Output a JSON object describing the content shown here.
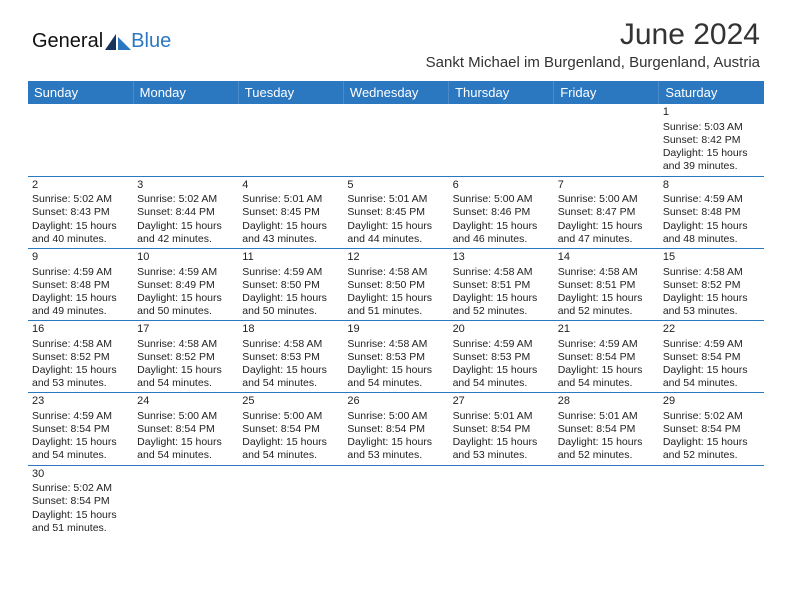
{
  "brand": {
    "word1": "General",
    "word2": "Blue"
  },
  "title": "June 2024",
  "location": "Sankt Michael im Burgenland, Burgenland, Austria",
  "colors": {
    "header_bg": "#2b77c0",
    "header_fg": "#ffffff",
    "rule": "#2b77c0",
    "text": "#222222",
    "page_bg": "#ffffff"
  },
  "day_headers": [
    "Sunday",
    "Monday",
    "Tuesday",
    "Wednesday",
    "Thursday",
    "Friday",
    "Saturday"
  ],
  "weeks": [
    [
      null,
      null,
      null,
      null,
      null,
      null,
      {
        "n": "1",
        "sr": "Sunrise: 5:03 AM",
        "ss": "Sunset: 8:42 PM",
        "d1": "Daylight: 15 hours",
        "d2": "and 39 minutes."
      }
    ],
    [
      {
        "n": "2",
        "sr": "Sunrise: 5:02 AM",
        "ss": "Sunset: 8:43 PM",
        "d1": "Daylight: 15 hours",
        "d2": "and 40 minutes."
      },
      {
        "n": "3",
        "sr": "Sunrise: 5:02 AM",
        "ss": "Sunset: 8:44 PM",
        "d1": "Daylight: 15 hours",
        "d2": "and 42 minutes."
      },
      {
        "n": "4",
        "sr": "Sunrise: 5:01 AM",
        "ss": "Sunset: 8:45 PM",
        "d1": "Daylight: 15 hours",
        "d2": "and 43 minutes."
      },
      {
        "n": "5",
        "sr": "Sunrise: 5:01 AM",
        "ss": "Sunset: 8:45 PM",
        "d1": "Daylight: 15 hours",
        "d2": "and 44 minutes."
      },
      {
        "n": "6",
        "sr": "Sunrise: 5:00 AM",
        "ss": "Sunset: 8:46 PM",
        "d1": "Daylight: 15 hours",
        "d2": "and 46 minutes."
      },
      {
        "n": "7",
        "sr": "Sunrise: 5:00 AM",
        "ss": "Sunset: 8:47 PM",
        "d1": "Daylight: 15 hours",
        "d2": "and 47 minutes."
      },
      {
        "n": "8",
        "sr": "Sunrise: 4:59 AM",
        "ss": "Sunset: 8:48 PM",
        "d1": "Daylight: 15 hours",
        "d2": "and 48 minutes."
      }
    ],
    [
      {
        "n": "9",
        "sr": "Sunrise: 4:59 AM",
        "ss": "Sunset: 8:48 PM",
        "d1": "Daylight: 15 hours",
        "d2": "and 49 minutes."
      },
      {
        "n": "10",
        "sr": "Sunrise: 4:59 AM",
        "ss": "Sunset: 8:49 PM",
        "d1": "Daylight: 15 hours",
        "d2": "and 50 minutes."
      },
      {
        "n": "11",
        "sr": "Sunrise: 4:59 AM",
        "ss": "Sunset: 8:50 PM",
        "d1": "Daylight: 15 hours",
        "d2": "and 50 minutes."
      },
      {
        "n": "12",
        "sr": "Sunrise: 4:58 AM",
        "ss": "Sunset: 8:50 PM",
        "d1": "Daylight: 15 hours",
        "d2": "and 51 minutes."
      },
      {
        "n": "13",
        "sr": "Sunrise: 4:58 AM",
        "ss": "Sunset: 8:51 PM",
        "d1": "Daylight: 15 hours",
        "d2": "and 52 minutes."
      },
      {
        "n": "14",
        "sr": "Sunrise: 4:58 AM",
        "ss": "Sunset: 8:51 PM",
        "d1": "Daylight: 15 hours",
        "d2": "and 52 minutes."
      },
      {
        "n": "15",
        "sr": "Sunrise: 4:58 AM",
        "ss": "Sunset: 8:52 PM",
        "d1": "Daylight: 15 hours",
        "d2": "and 53 minutes."
      }
    ],
    [
      {
        "n": "16",
        "sr": "Sunrise: 4:58 AM",
        "ss": "Sunset: 8:52 PM",
        "d1": "Daylight: 15 hours",
        "d2": "and 53 minutes."
      },
      {
        "n": "17",
        "sr": "Sunrise: 4:58 AM",
        "ss": "Sunset: 8:52 PM",
        "d1": "Daylight: 15 hours",
        "d2": "and 54 minutes."
      },
      {
        "n": "18",
        "sr": "Sunrise: 4:58 AM",
        "ss": "Sunset: 8:53 PM",
        "d1": "Daylight: 15 hours",
        "d2": "and 54 minutes."
      },
      {
        "n": "19",
        "sr": "Sunrise: 4:58 AM",
        "ss": "Sunset: 8:53 PM",
        "d1": "Daylight: 15 hours",
        "d2": "and 54 minutes."
      },
      {
        "n": "20",
        "sr": "Sunrise: 4:59 AM",
        "ss": "Sunset: 8:53 PM",
        "d1": "Daylight: 15 hours",
        "d2": "and 54 minutes."
      },
      {
        "n": "21",
        "sr": "Sunrise: 4:59 AM",
        "ss": "Sunset: 8:54 PM",
        "d1": "Daylight: 15 hours",
        "d2": "and 54 minutes."
      },
      {
        "n": "22",
        "sr": "Sunrise: 4:59 AM",
        "ss": "Sunset: 8:54 PM",
        "d1": "Daylight: 15 hours",
        "d2": "and 54 minutes."
      }
    ],
    [
      {
        "n": "23",
        "sr": "Sunrise: 4:59 AM",
        "ss": "Sunset: 8:54 PM",
        "d1": "Daylight: 15 hours",
        "d2": "and 54 minutes."
      },
      {
        "n": "24",
        "sr": "Sunrise: 5:00 AM",
        "ss": "Sunset: 8:54 PM",
        "d1": "Daylight: 15 hours",
        "d2": "and 54 minutes."
      },
      {
        "n": "25",
        "sr": "Sunrise: 5:00 AM",
        "ss": "Sunset: 8:54 PM",
        "d1": "Daylight: 15 hours",
        "d2": "and 54 minutes."
      },
      {
        "n": "26",
        "sr": "Sunrise: 5:00 AM",
        "ss": "Sunset: 8:54 PM",
        "d1": "Daylight: 15 hours",
        "d2": "and 53 minutes."
      },
      {
        "n": "27",
        "sr": "Sunrise: 5:01 AM",
        "ss": "Sunset: 8:54 PM",
        "d1": "Daylight: 15 hours",
        "d2": "and 53 minutes."
      },
      {
        "n": "28",
        "sr": "Sunrise: 5:01 AM",
        "ss": "Sunset: 8:54 PM",
        "d1": "Daylight: 15 hours",
        "d2": "and 52 minutes."
      },
      {
        "n": "29",
        "sr": "Sunrise: 5:02 AM",
        "ss": "Sunset: 8:54 PM",
        "d1": "Daylight: 15 hours",
        "d2": "and 52 minutes."
      }
    ],
    [
      {
        "n": "30",
        "sr": "Sunrise: 5:02 AM",
        "ss": "Sunset: 8:54 PM",
        "d1": "Daylight: 15 hours",
        "d2": "and 51 minutes."
      },
      null,
      null,
      null,
      null,
      null,
      null
    ]
  ]
}
